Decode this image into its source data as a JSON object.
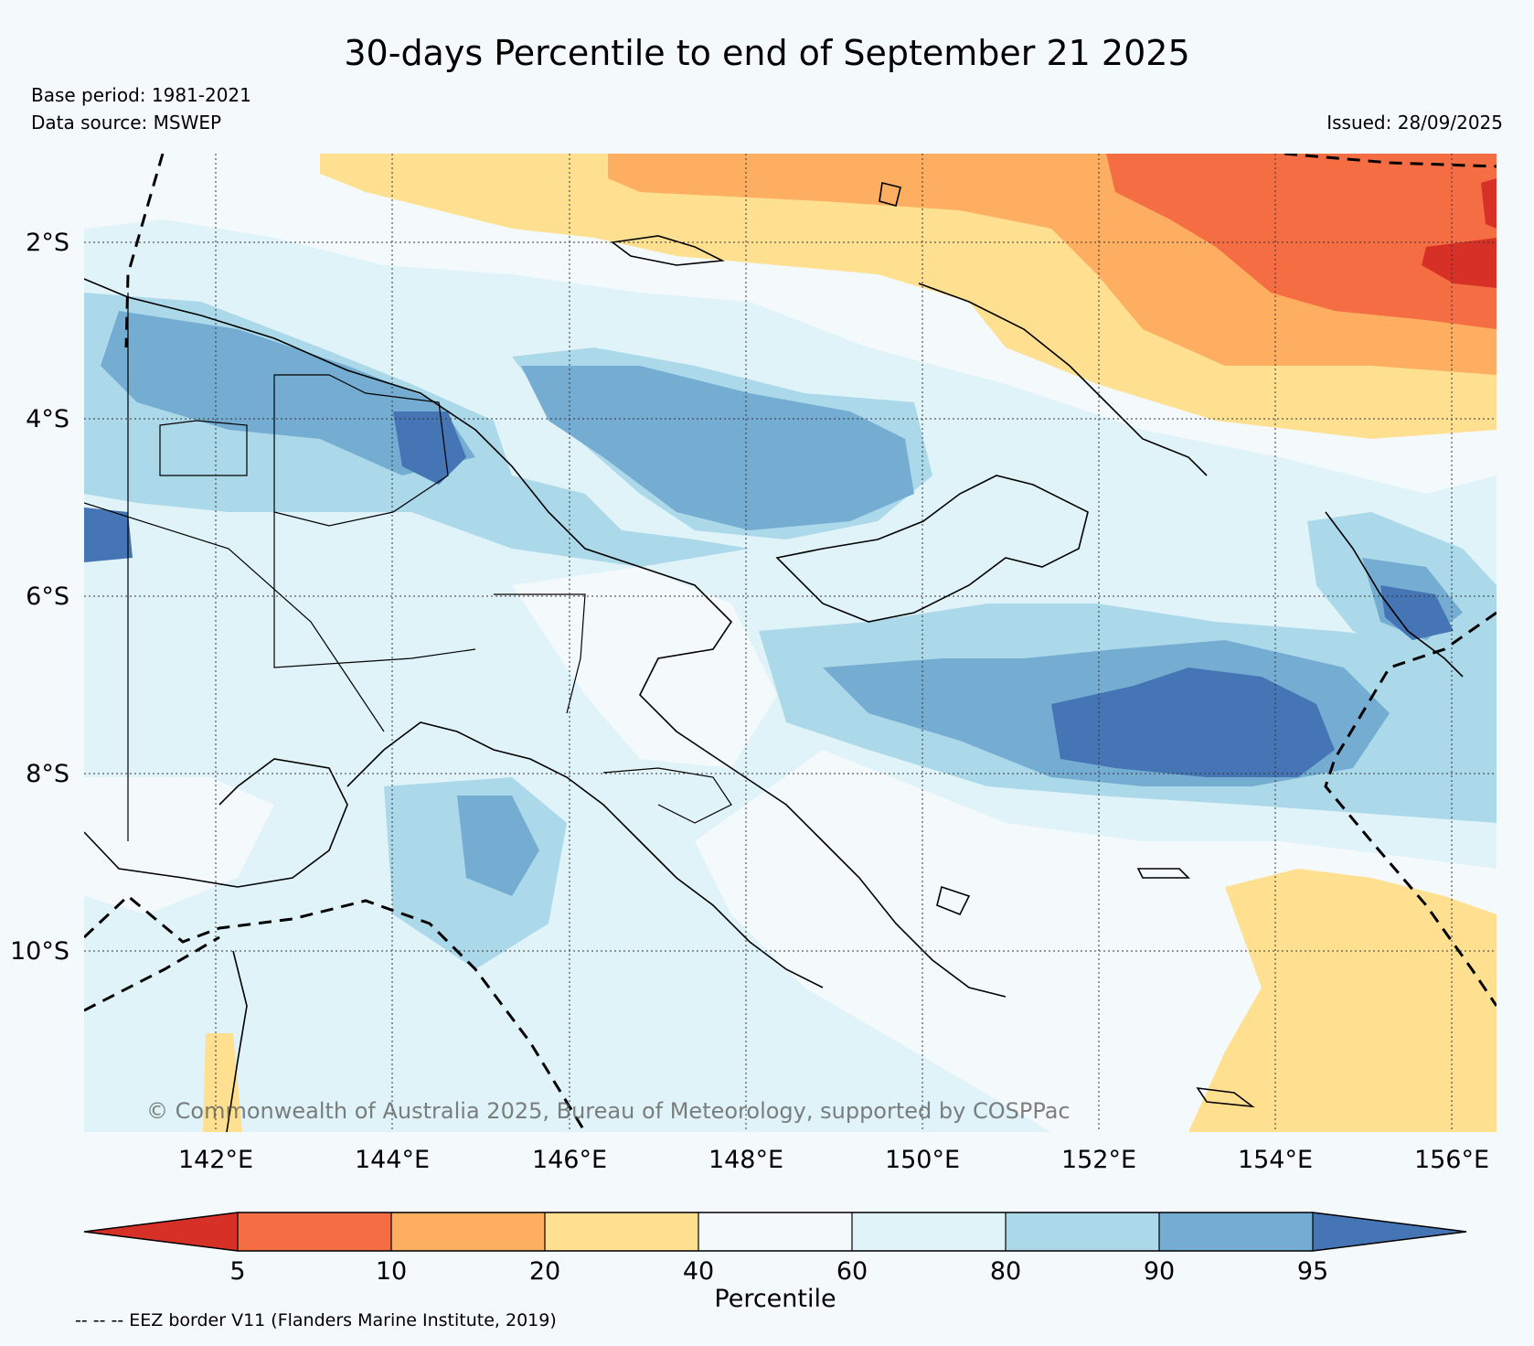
{
  "title": "30-days Percentile to end of September 21 2025",
  "base_period": "Base period: 1981-2021",
  "data_source": "Data source: MSWEP",
  "issued": "Issued: 28/09/2025",
  "copyright": "© Commonwealth of Australia 2025, Bureau of Meteorology, supported by COSPPac",
  "axes": {
    "lat_labels": [
      "2°S",
      "4°S",
      "6°S",
      "8°S",
      "10°S"
    ],
    "lon_labels": [
      "142°E",
      "144°E",
      "146°E",
      "148°E",
      "150°E",
      "152°E",
      "154°E",
      "156°E"
    ]
  },
  "colorbar": {
    "label": "Percentile",
    "ticks": [
      "5",
      "10",
      "20",
      "40",
      "60",
      "80",
      "90",
      "95"
    ],
    "colors": [
      "#d73027",
      "#f46d43",
      "#fdae61",
      "#fee090",
      "#f4f9fc",
      "#e0f3f8",
      "#abd9e9",
      "#74add1",
      "#4575b4"
    ]
  },
  "footnote": "-- -- -- EEZ border V11 (Flanders Marine Institute, 2019)"
}
